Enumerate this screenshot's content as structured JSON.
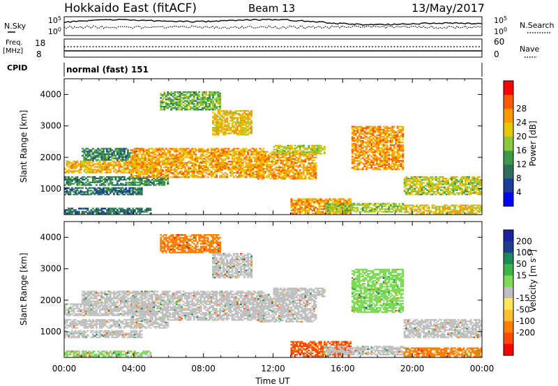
{
  "header": {
    "station": "Hokkaido East (fitACF)",
    "beam": "Beam 13",
    "date": "13/May/2017"
  },
  "noise_panel": {
    "left_label": "N.Sky",
    "right_label": "N.Search",
    "tick_top": "10^5",
    "tick_bottom": "10^0"
  },
  "freq_panel": {
    "left_label_1": "Freq.",
    "left_label_2": "[MHz]",
    "left_tick_top": "18",
    "left_tick_bottom": "8",
    "right_label": "Nave",
    "right_tick_top": "60",
    "right_tick_bottom": "0"
  },
  "cpid_panel": {
    "label": "CPID",
    "value": "normal (fast) 151"
  },
  "colors": {
    "power": [
      "#0000ff",
      "#1e3c9a",
      "#2e6e5c",
      "#3a9a4a",
      "#8cc63f",
      "#e6c800",
      "#ff9a00",
      "#ff5a00",
      "#ff0000"
    ],
    "velocity": [
      "#ff0000",
      "#ff4a00",
      "#ff8000",
      "#ffbf33",
      "#ffe85c",
      "#c0c0c0",
      "#7ed957",
      "#3cb44b",
      "#1e8a5a",
      "#1f3e8c",
      "#1a22a0"
    ]
  },
  "chart_data": [
    {
      "type": "heatmap",
      "name": "power",
      "ylabel": "Slant Range [km]",
      "yticks": [
        "1000",
        "2000",
        "3000",
        "4000"
      ],
      "ylim": [
        180,
        4500
      ],
      "xlim": [
        0,
        24
      ],
      "colorbar_label": "Power [dB]",
      "colorbar_ticks": [
        "4",
        "8",
        "12",
        "16",
        "20",
        "24",
        "28"
      ],
      "colorbar_range": [
        0,
        32
      ],
      "bands": [
        {
          "t0": 0.0,
          "t1": 5.2,
          "r0": 1500,
          "r1": 1900,
          "v": 26
        },
        {
          "t0": 0.0,
          "t1": 6.0,
          "r0": 1100,
          "r1": 1400,
          "v": 14
        },
        {
          "t0": 0.0,
          "t1": 4.5,
          "r0": 800,
          "r1": 1050,
          "v": 12
        },
        {
          "t0": 0.0,
          "t1": 5.0,
          "r0": 200,
          "r1": 400,
          "v": 12
        },
        {
          "t0": 1.0,
          "t1": 4.2,
          "r0": 1900,
          "r1": 2300,
          "v": 14
        },
        {
          "t0": 3.8,
          "t1": 11.5,
          "r0": 1350,
          "r1": 2300,
          "v": 27
        },
        {
          "t0": 5.5,
          "t1": 9.0,
          "r0": 3500,
          "r1": 4100,
          "v": 18
        },
        {
          "t0": 8.5,
          "t1": 10.8,
          "r0": 2700,
          "r1": 3500,
          "v": 25
        },
        {
          "t0": 11.0,
          "t1": 14.5,
          "r0": 1300,
          "r1": 2200,
          "v": 27
        },
        {
          "t0": 12.0,
          "t1": 15.0,
          "r0": 2100,
          "r1": 2400,
          "v": 22
        },
        {
          "t0": 13.0,
          "t1": 16.5,
          "r0": 200,
          "r1": 700,
          "v": 28
        },
        {
          "t0": 15.0,
          "t1": 19.5,
          "r0": 250,
          "r1": 550,
          "v": 21
        },
        {
          "t0": 16.5,
          "t1": 19.5,
          "r0": 1600,
          "r1": 3000,
          "v": 28
        },
        {
          "t0": 19.5,
          "t1": 24.0,
          "r0": 800,
          "r1": 1400,
          "v": 22
        },
        {
          "t0": 19.5,
          "t1": 24.0,
          "r0": 200,
          "r1": 500,
          "v": 24
        }
      ]
    },
    {
      "type": "heatmap",
      "name": "velocity",
      "ylabel": "Slant Range [km]",
      "yticks": [
        "1000",
        "2000",
        "3000",
        "4000"
      ],
      "ylim": [
        180,
        4500
      ],
      "xlim": [
        0,
        24
      ],
      "colorbar_label": "Velocity [m s^-1]",
      "colorbar_ticks": [
        "200",
        "100",
        "50",
        "15",
        "-15",
        "-50",
        "-100",
        "-200"
      ],
      "bands": [
        {
          "t0": 0.0,
          "t1": 5.2,
          "r0": 1500,
          "r1": 1900,
          "v": 0
        },
        {
          "t0": 0.0,
          "t1": 6.0,
          "r0": 1100,
          "r1": 1400,
          "v": 0
        },
        {
          "t0": 0.0,
          "t1": 4.5,
          "r0": 800,
          "r1": 1050,
          "v": 0
        },
        {
          "t0": 0.0,
          "t1": 5.0,
          "r0": 200,
          "r1": 400,
          "v": 20
        },
        {
          "t0": 1.0,
          "t1": 4.2,
          "r0": 1900,
          "r1": 2300,
          "v": 0
        },
        {
          "t0": 3.8,
          "t1": 11.5,
          "r0": 1350,
          "r1": 2300,
          "v": 0
        },
        {
          "t0": 5.5,
          "t1": 9.0,
          "r0": 3500,
          "r1": 4100,
          "v": -40
        },
        {
          "t0": 8.5,
          "t1": 10.8,
          "r0": 2700,
          "r1": 3500,
          "v": 0
        },
        {
          "t0": 11.0,
          "t1": 14.5,
          "r0": 1300,
          "r1": 2200,
          "v": 0
        },
        {
          "t0": 12.0,
          "t1": 15.0,
          "r0": 2100,
          "r1": 2400,
          "v": 0
        },
        {
          "t0": 13.0,
          "t1": 16.5,
          "r0": 200,
          "r1": 700,
          "v": -80
        },
        {
          "t0": 15.0,
          "t1": 19.5,
          "r0": 250,
          "r1": 550,
          "v": 0
        },
        {
          "t0": 16.5,
          "t1": 19.5,
          "r0": 1600,
          "r1": 3000,
          "v": 30
        },
        {
          "t0": 19.5,
          "t1": 24.0,
          "r0": 800,
          "r1": 1400,
          "v": 0
        },
        {
          "t0": 19.5,
          "t1": 24.0,
          "r0": 200,
          "r1": 500,
          "v": -40
        }
      ]
    }
  ],
  "time_axis": {
    "label": "Time UT",
    "ticks": [
      "00:00",
      "04:00",
      "08:00",
      "12:00",
      "16:00",
      "20:00",
      "00:00"
    ]
  }
}
